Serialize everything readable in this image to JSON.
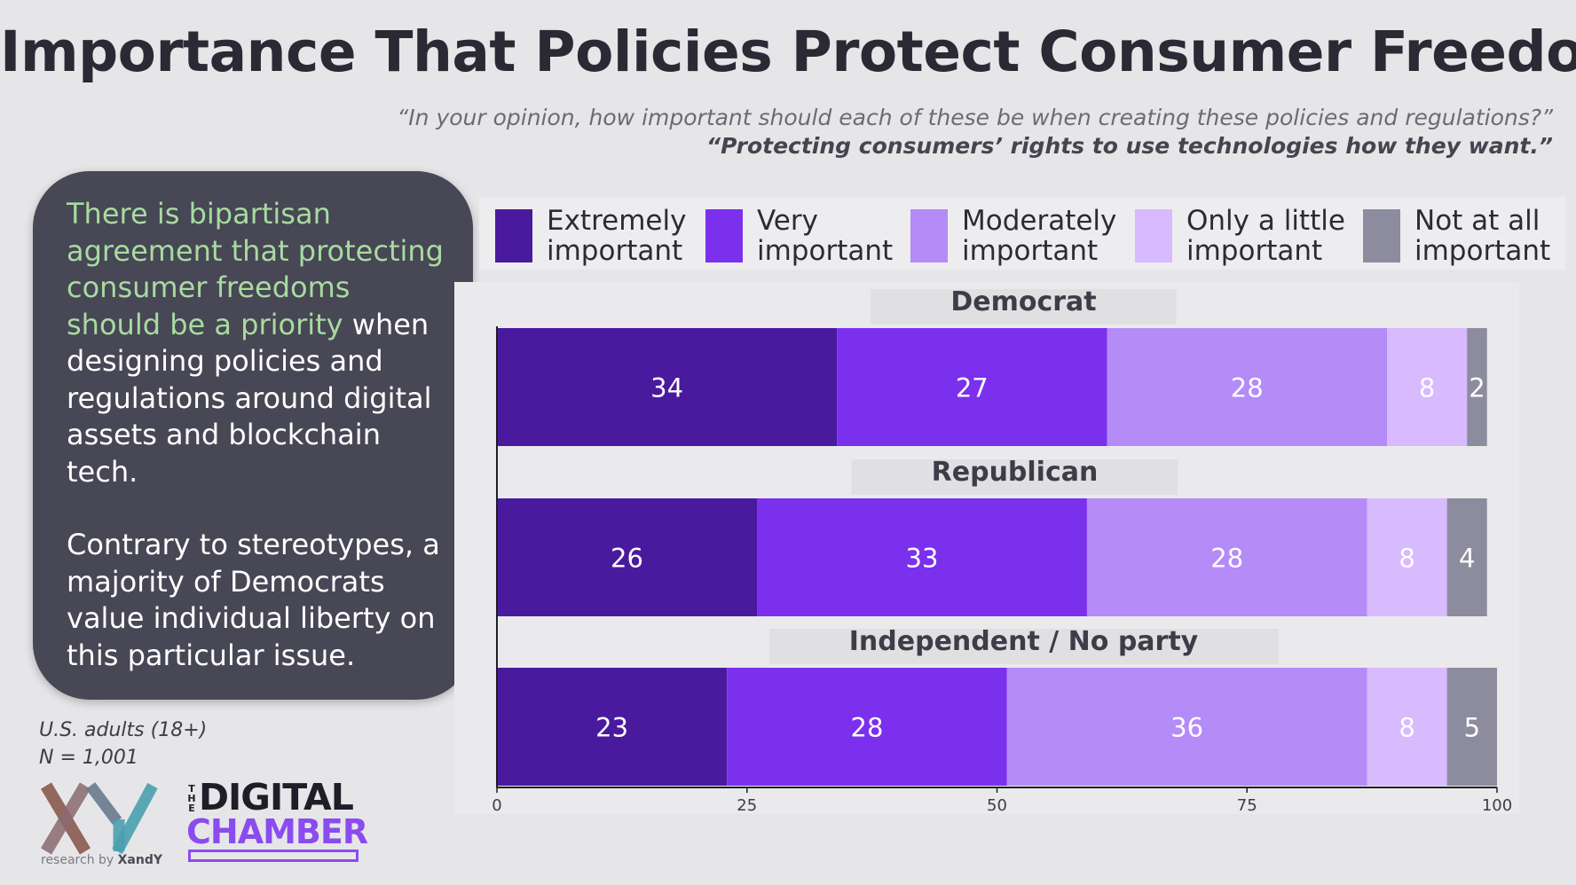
{
  "title": "Importance That Policies Protect Consumer Freedom",
  "question": "“In your opinion, how important should each of these be when creating these policies and regulations?”",
  "statement": "“Protecting consumers’ rights to use technologies how they want.”",
  "callout": {
    "highlight": "There is bipartisan agreement that protecting consumer freedoms should be a priority",
    "rest": " when designing policies and regulations around digital assets and blockchain tech.",
    "paragraph2": "Contrary to stereotypes, a majority of Democrats value individual liberty on this particular issue."
  },
  "sample": {
    "population": "U.S. adults (18+)",
    "n": "N = 1,001"
  },
  "logos": {
    "xandy_tag_prefix": "research by ",
    "xandy_tag_name": "XandY",
    "digital_chamber_the": "THE",
    "digital_chamber_word1": "DIGITAL",
    "digital_chamber_word2": "CHAMBER"
  },
  "chart_data": {
    "type": "bar",
    "orientation": "horizontal-stacked",
    "categories": [
      "Democrat",
      "Republican",
      "Independent / No party"
    ],
    "series": [
      {
        "name": "Extremely important",
        "label": "Extremely\nimportant",
        "color": "#4a1a9e",
        "values": [
          34,
          26,
          23
        ]
      },
      {
        "name": "Very important",
        "label": "Very\nimportant",
        "color": "#7b30ee",
        "values": [
          27,
          33,
          28
        ]
      },
      {
        "name": "Moderately important",
        "label": "Moderately\nimportant",
        "color": "#b48bf7",
        "values": [
          28,
          28,
          36
        ]
      },
      {
        "name": "Only a little important",
        "label": "Only a little\nimportant",
        "color": "#d8baff",
        "values": [
          8,
          8,
          8
        ]
      },
      {
        "name": "Not at all important",
        "label": "Not at all\nimportant",
        "color": "#8c8c9e",
        "values": [
          2,
          4,
          5
        ]
      }
    ],
    "xlim": [
      0,
      100
    ],
    "xticks": [
      0,
      25,
      50,
      75,
      100
    ],
    "legend_placement": "top",
    "grid": false
  }
}
